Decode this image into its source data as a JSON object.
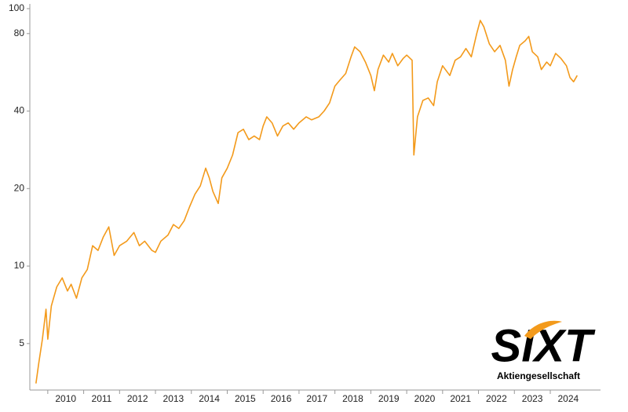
{
  "chart_data": {
    "type": "line",
    "logo": {
      "brand": "SIXT",
      "subtitle": "Aktiengesellschaft"
    },
    "log_scale": true,
    "xlim": [
      2009.5,
      2025.4
    ],
    "xticks": [
      2010,
      2011,
      2012,
      2013,
      2014,
      2015,
      2016,
      2017,
      2018,
      2019,
      2020,
      2021,
      2022,
      2023,
      2024
    ],
    "ylim": [
      3.3,
      100
    ],
    "yticks": [
      5,
      10,
      20,
      40,
      80,
      100
    ],
    "series": [
      {
        "color": "#f39a1b",
        "x": [
          2009.67,
          2009.75,
          2009.85,
          2009.95,
          2010.0,
          2010.1,
          2010.25,
          2010.4,
          2010.55,
          2010.65,
          2010.8,
          2010.95,
          2011.1,
          2011.25,
          2011.4,
          2011.55,
          2011.7,
          2011.85,
          2012.0,
          2012.2,
          2012.4,
          2012.55,
          2012.7,
          2012.9,
          2013.0,
          2013.15,
          2013.35,
          2013.5,
          2013.65,
          2013.8,
          2013.95,
          2014.1,
          2014.25,
          2014.4,
          2014.5,
          2014.6,
          2014.75,
          2014.85,
          2015.0,
          2015.15,
          2015.3,
          2015.45,
          2015.6,
          2015.75,
          2015.9,
          2016.0,
          2016.1,
          2016.25,
          2016.4,
          2016.55,
          2016.7,
          2016.85,
          2017.0,
          2017.2,
          2017.35,
          2017.55,
          2017.7,
          2017.85,
          2018.0,
          2018.15,
          2018.3,
          2018.45,
          2018.55,
          2018.7,
          2018.85,
          2019.0,
          2019.1,
          2019.2,
          2019.35,
          2019.5,
          2019.6,
          2019.75,
          2019.9,
          2020.0,
          2020.15,
          2020.2,
          2020.3,
          2020.45,
          2020.6,
          2020.75,
          2020.85,
          2021.0,
          2021.2,
          2021.35,
          2021.5,
          2021.65,
          2021.8,
          2021.95,
          2022.05,
          2022.15,
          2022.3,
          2022.45,
          2022.6,
          2022.75,
          2022.85,
          2022.95,
          2023.05,
          2023.15,
          2023.3,
          2023.4,
          2023.5,
          2023.65,
          2023.75,
          2023.9,
          2024.0,
          2024.15,
          2024.3,
          2024.45,
          2024.55,
          2024.65,
          2024.75
        ],
        "values": [
          3.5,
          4.2,
          5.2,
          6.8,
          5.2,
          7.0,
          8.3,
          9.0,
          8.0,
          8.5,
          7.5,
          9.0,
          9.7,
          12.0,
          11.5,
          13.0,
          14.2,
          11.0,
          12.0,
          12.5,
          13.5,
          12.0,
          12.5,
          11.5,
          11.3,
          12.5,
          13.2,
          14.5,
          14.0,
          15.0,
          17.0,
          19.0,
          20.5,
          24.0,
          22.0,
          19.5,
          17.5,
          22.0,
          24.0,
          27.0,
          33.0,
          34.0,
          31.0,
          32.0,
          31.0,
          35.0,
          38.0,
          36.0,
          32.0,
          35.0,
          36.0,
          34.0,
          36.0,
          38.0,
          37.0,
          38.0,
          40.0,
          43.0,
          50.0,
          53.0,
          56.0,
          65.0,
          71.0,
          68.0,
          62.0,
          55.0,
          48.0,
          58.0,
          66.0,
          62.0,
          67.0,
          60.0,
          64.0,
          66.0,
          63.0,
          27.0,
          38.0,
          44.0,
          45.0,
          42.0,
          52.0,
          60.0,
          55.0,
          63.0,
          65.0,
          70.0,
          65.0,
          80.0,
          90.0,
          85.0,
          73.0,
          68.0,
          72.0,
          63.0,
          50.0,
          58.0,
          65.0,
          72.0,
          75.0,
          78.0,
          68.0,
          65.0,
          58.0,
          62.0,
          60.0,
          67.0,
          64.0,
          60.0,
          54.0,
          52.0,
          55.0
        ]
      }
    ]
  }
}
